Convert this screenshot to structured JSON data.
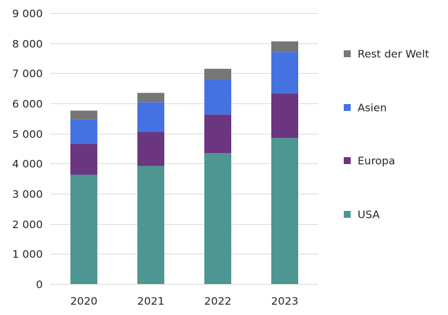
{
  "chart_data": {
    "type": "bar",
    "stacked": true,
    "categories": [
      "2020",
      "2021",
      "2022",
      "2023"
    ],
    "series": [
      {
        "name": "USA",
        "color": "#4e9691",
        "values": [
          3630,
          3920,
          4350,
          4850
        ]
      },
      {
        "name": "Europa",
        "color": "#6b3580",
        "values": [
          1020,
          1130,
          1280,
          1480
        ]
      },
      {
        "name": "Asien",
        "color": "#4472e0",
        "values": [
          820,
          990,
          1170,
          1380
        ]
      },
      {
        "name": "Rest der Welt",
        "color": "#767676",
        "values": [
          290,
          310,
          350,
          350
        ]
      }
    ],
    "ylim": [
      0,
      9000
    ],
    "yticks": [
      0,
      1000,
      2000,
      3000,
      4000,
      5000,
      6000,
      7000,
      8000,
      9000
    ],
    "ytick_labels": [
      "0",
      "1 000",
      "2 000",
      "3 000",
      "4 000",
      "5 000",
      "6 000",
      "7 000",
      "8 000",
      "9 000"
    ],
    "title": "",
    "xlabel": "",
    "ylabel": "",
    "grid": true,
    "legend_position": "right",
    "legend_order": [
      "Rest der Welt",
      "Asien",
      "Europa",
      "USA"
    ]
  }
}
